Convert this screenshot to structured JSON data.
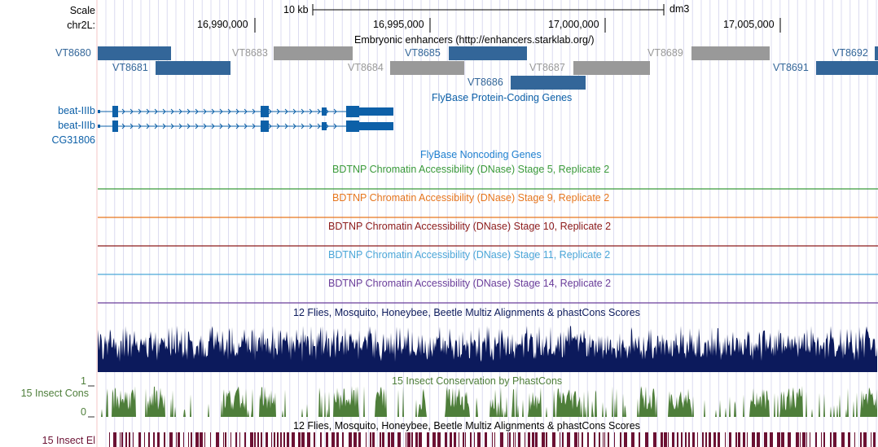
{
  "header": {
    "scale_label": "Scale",
    "scale_value": "10 kb",
    "assembly": "dm3",
    "chrom_label": "chr2L:",
    "positions": [
      "16,990,000",
      "16,995,000",
      "17,000,000",
      "17,005,000"
    ]
  },
  "tracks": {
    "enhancers": {
      "title": "Embryonic enhancers (http://enhancers.starklab.org/)",
      "items": [
        {
          "name": "VT8680",
          "color": "#336699"
        },
        {
          "name": "VT8681",
          "color": "#336699"
        },
        {
          "name": "VT8683",
          "color": "#999999"
        },
        {
          "name": "VT8684",
          "color": "#999999"
        },
        {
          "name": "VT8685",
          "color": "#336699"
        },
        {
          "name": "VT8686",
          "color": "#336699"
        },
        {
          "name": "VT8687",
          "color": "#999999"
        },
        {
          "name": "VT8689",
          "color": "#999999"
        },
        {
          "name": "VT8691",
          "color": "#336699"
        },
        {
          "name": "VT8692",
          "color": "#336699"
        }
      ]
    },
    "protein_coding": {
      "title": "FlyBase Protein-Coding Genes",
      "genes": [
        "beat-IIIb",
        "beat-IIIb",
        "CG31806"
      ],
      "color": "#0D60A8"
    },
    "noncoding": {
      "title": "FlyBase Noncoding Genes",
      "color": "#1E7FCF"
    },
    "dnase": [
      {
        "title": "BDTNP Chromatin Accessibility (DNase) Stage 5, Replicate 2",
        "color": "#3A9A3A"
      },
      {
        "title": "BDTNP Chromatin Accessibility (DNase) Stage 9, Replicate 2",
        "color": "#E6761E"
      },
      {
        "title": "BDTNP Chromatin Accessibility (DNase) Stage 10, Replicate 2",
        "color": "#8C1A1A"
      },
      {
        "title": "BDTNP Chromatin Accessibility (DNase) Stage 11, Replicate 2",
        "color": "#4BA6D8"
      },
      {
        "title": "BDTNP Chromatin Accessibility (DNase) Stage 14, Replicate 2",
        "color": "#6A3D9A"
      }
    ],
    "multiz": {
      "title": "12 Flies, Mosquito, Honeybee, Beetle Multiz Alignments & phastCons Scores",
      "color": "#0C1A5C"
    },
    "insect_cons": {
      "title": "15 Insect Conservation by PhastCons",
      "side_label": "15 Insect Cons",
      "axis_max": "1",
      "axis_min": "0",
      "color": "#4E7E3A"
    },
    "insect_el": {
      "title": "12 Flies, Mosquito, Honeybee, Beetle Multiz Alignments & phastCons Scores",
      "side_label": "15 Insect El",
      "color": "#6B1133"
    }
  }
}
